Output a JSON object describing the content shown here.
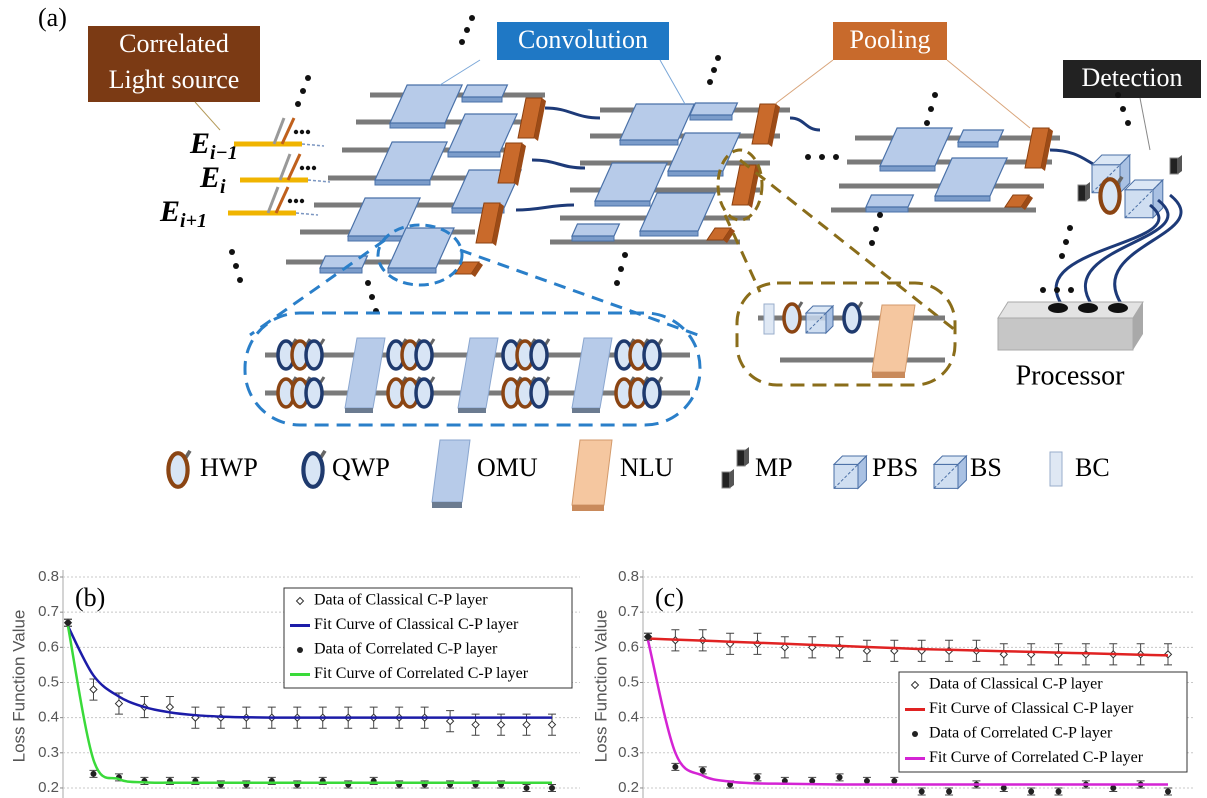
{
  "panel_a": {
    "label": "(a)",
    "source": [
      "Correlated",
      "Light source"
    ],
    "convolution": "Convolution",
    "pooling": "Pooling",
    "detection": "Detection",
    "processor": "Processor",
    "inputs": [
      {
        "symbol": "E",
        "subscript": "i−1"
      },
      {
        "symbol": "E",
        "subscript": "i"
      },
      {
        "symbol": "E",
        "subscript": "i+1"
      }
    ],
    "legend": [
      "HWP",
      "QWP",
      "OMU",
      "NLU",
      "MP",
      "PBS",
      "BS",
      "BC"
    ]
  },
  "chart_data": [
    {
      "type": "line",
      "panel_label": "(b)",
      "y_label": "Loss Function Value",
      "legend_position": "upper right",
      "grid": true,
      "categories": [
        null,
        null,
        null,
        null,
        null,
        null,
        null,
        null,
        null,
        null,
        null,
        null,
        null,
        null,
        null,
        null,
        null,
        null,
        null,
        null
      ],
      "ylim": [
        0.18,
        0.8
      ],
      "yticks": [
        0.2,
        0.3,
        0.4,
        0.5,
        0.6,
        0.7,
        0.8
      ],
      "series": [
        {
          "name": "Data of Classical C-P layer",
          "kind": "points",
          "marker": "open",
          "color": "#333333",
          "values": [
            0.67,
            0.48,
            0.44,
            0.43,
            0.43,
            0.4,
            0.4,
            0.4,
            0.4,
            0.4,
            0.4,
            0.4,
            0.4,
            0.4,
            0.4,
            0.39,
            0.38,
            0.38,
            0.38,
            0.38
          ],
          "errors": [
            0.01,
            0.03,
            0.03,
            0.03,
            0.03,
            0.03,
            0.03,
            0.03,
            0.03,
            0.03,
            0.03,
            0.03,
            0.03,
            0.03,
            0.03,
            0.03,
            0.03,
            0.03,
            0.03,
            0.03
          ]
        },
        {
          "name": "Fit Curve of Classical C-P layer",
          "kind": "line",
          "color": "#1c1ca8",
          "values": [
            0.66,
            0.52,
            0.46,
            0.43,
            0.415,
            0.407,
            0.403,
            0.401,
            0.4,
            0.4,
            0.4,
            0.4,
            0.4,
            0.4,
            0.4,
            0.4,
            0.4,
            0.4,
            0.4,
            0.4
          ]
        },
        {
          "name": "Data of Correlated C-P layer",
          "kind": "points",
          "marker": "filled",
          "color": "#222222",
          "values": [
            0.67,
            0.24,
            0.23,
            0.22,
            0.22,
            0.22,
            0.21,
            0.21,
            0.22,
            0.21,
            0.22,
            0.21,
            0.22,
            0.21,
            0.21,
            0.21,
            0.21,
            0.21,
            0.2,
            0.2
          ],
          "errors": [
            0.01,
            0.01,
            0.01,
            0.01,
            0.01,
            0.01,
            0.01,
            0.01,
            0.01,
            0.01,
            0.01,
            0.01,
            0.01,
            0.01,
            0.01,
            0.01,
            0.01,
            0.01,
            0.01,
            0.01
          ]
        },
        {
          "name": "Fit Curve of Correlated C-P layer",
          "kind": "line",
          "color": "#3ada3a",
          "values": [
            0.66,
            0.28,
            0.225,
            0.216,
            0.215,
            0.215,
            0.215,
            0.215,
            0.215,
            0.215,
            0.215,
            0.215,
            0.215,
            0.215,
            0.215,
            0.215,
            0.215,
            0.215,
            0.215,
            0.215
          ]
        }
      ]
    },
    {
      "type": "line",
      "panel_label": "(c)",
      "y_label": "Loss Function Value",
      "legend_position": "lower right",
      "grid": true,
      "categories": [
        null,
        null,
        null,
        null,
        null,
        null,
        null,
        null,
        null,
        null,
        null,
        null,
        null,
        null,
        null,
        null,
        null,
        null,
        null,
        null
      ],
      "ylim": [
        0.18,
        0.8
      ],
      "yticks": [
        0.2,
        0.3,
        0.4,
        0.5,
        0.6,
        0.7,
        0.8
      ],
      "series": [
        {
          "name": "Data of Classical C-P layer",
          "kind": "points",
          "marker": "open",
          "color": "#333333",
          "values": [
            0.63,
            0.62,
            0.62,
            0.61,
            0.61,
            0.6,
            0.6,
            0.6,
            0.59,
            0.59,
            0.59,
            0.59,
            0.59,
            0.58,
            0.58,
            0.58,
            0.58,
            0.58,
            0.58,
            0.58
          ],
          "errors": [
            0.01,
            0.03,
            0.03,
            0.03,
            0.03,
            0.03,
            0.03,
            0.03,
            0.03,
            0.03,
            0.03,
            0.03,
            0.03,
            0.03,
            0.03,
            0.03,
            0.03,
            0.03,
            0.03,
            0.03
          ]
        },
        {
          "name": "Fit Curve of Classical C-P layer",
          "kind": "line",
          "color": "#e02222",
          "values": [
            0.625,
            0.622,
            0.619,
            0.616,
            0.613,
            0.61,
            0.607,
            0.604,
            0.601,
            0.598,
            0.595,
            0.593,
            0.591,
            0.589,
            0.587,
            0.585,
            0.583,
            0.581,
            0.579,
            0.577
          ]
        },
        {
          "name": "Data of Correlated C-P layer",
          "kind": "points",
          "marker": "filled",
          "color": "#222222",
          "values": [
            0.63,
            0.26,
            0.25,
            0.21,
            0.23,
            0.22,
            0.22,
            0.23,
            0.22,
            0.22,
            0.19,
            0.19,
            0.21,
            0.2,
            0.19,
            0.19,
            0.21,
            0.2,
            0.21,
            0.19
          ],
          "errors": [
            0.01,
            0.01,
            0.01,
            0.01,
            0.01,
            0.01,
            0.01,
            0.01,
            0.01,
            0.01,
            0.01,
            0.01,
            0.01,
            0.01,
            0.01,
            0.01,
            0.01,
            0.01,
            0.01,
            0.01
          ]
        },
        {
          "name": "Fit Curve of Correlated C-P layer",
          "kind": "line",
          "color": "#d424d4",
          "values": [
            0.62,
            0.3,
            0.235,
            0.218,
            0.213,
            0.212,
            0.211,
            0.21,
            0.21,
            0.21,
            0.21,
            0.21,
            0.21,
            0.21,
            0.21,
            0.21,
            0.21,
            0.21,
            0.21,
            0.21
          ]
        }
      ]
    }
  ]
}
